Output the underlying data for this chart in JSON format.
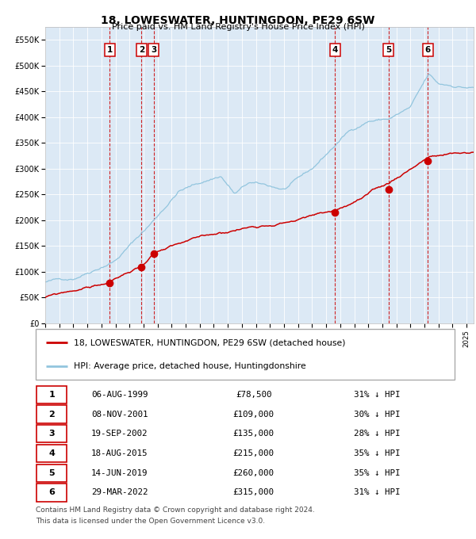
{
  "title": "18, LOWESWATER, HUNTINGDON, PE29 6SW",
  "subtitle": "Price paid vs. HM Land Registry's House Price Index (HPI)",
  "bg_color": "#dce9f5",
  "hpi_color": "#92c5de",
  "price_color": "#cc0000",
  "vline_color": "#cc0000",
  "transactions": [
    {
      "num": 1,
      "date_num": 1999.59,
      "price": 78500,
      "label": "06-AUG-1999",
      "pct": "31%"
    },
    {
      "num": 2,
      "date_num": 2001.85,
      "price": 109000,
      "label": "08-NOV-2001",
      "pct": "30%"
    },
    {
      "num": 3,
      "date_num": 2002.72,
      "price": 135000,
      "label": "19-SEP-2002",
      "pct": "28%"
    },
    {
      "num": 4,
      "date_num": 2015.63,
      "price": 215000,
      "label": "18-AUG-2015",
      "pct": "35%"
    },
    {
      "num": 5,
      "date_num": 2019.45,
      "price": 260000,
      "label": "14-JUN-2019",
      "pct": "35%"
    },
    {
      "num": 6,
      "date_num": 2022.24,
      "price": 315000,
      "label": "29-MAR-2022",
      "pct": "31%"
    }
  ],
  "legend_line1": "18, LOWESWATER, HUNTINGDON, PE29 6SW (detached house)",
  "legend_line2": "HPI: Average price, detached house, Huntingdonshire",
  "footer1": "Contains HM Land Registry data © Crown copyright and database right 2024.",
  "footer2": "This data is licensed under the Open Government Licence v3.0.",
  "ylim": [
    0,
    575000
  ],
  "xlim_start": 1995.0,
  "xlim_end": 2025.5
}
